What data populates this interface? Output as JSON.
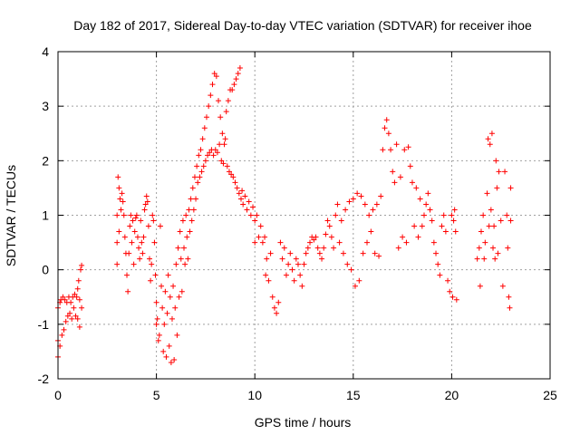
{
  "chart_data": {
    "type": "scatter",
    "title": "Day 182 of 2017, Sidereal Day-to-day VTEC variation (SDTVAR) for receiver ihoe",
    "xlabel": "GPS time / hours",
    "ylabel": "SDTVAR / TECUs",
    "xlim": [
      0,
      25
    ],
    "ylim": [
      -2,
      4
    ],
    "xticks": [
      0,
      5,
      10,
      15,
      20,
      25
    ],
    "yticks": [
      -2,
      -1,
      0,
      1,
      2,
      3,
      4
    ],
    "grid": true,
    "marker": "+",
    "color": "#ff0000",
    "series": [
      {
        "name": "SDTVAR",
        "points": [
          [
            0.0,
            -0.7
          ],
          [
            0.0,
            -1.3
          ],
          [
            0.0,
            -1.6
          ],
          [
            0.1,
            -0.6
          ],
          [
            0.1,
            -1.4
          ],
          [
            0.15,
            -0.55
          ],
          [
            0.2,
            -1.2
          ],
          [
            0.25,
            -0.5
          ],
          [
            0.3,
            -1.1
          ],
          [
            0.35,
            -0.55
          ],
          [
            0.4,
            -0.95
          ],
          [
            0.45,
            -0.6
          ],
          [
            0.5,
            -0.85
          ],
          [
            0.55,
            -0.5
          ],
          [
            0.6,
            -0.8
          ],
          [
            0.65,
            -0.6
          ],
          [
            0.7,
            -0.9
          ],
          [
            0.75,
            -0.5
          ],
          [
            0.8,
            -0.7
          ],
          [
            0.85,
            -0.45
          ],
          [
            0.9,
            -0.85
          ],
          [
            0.95,
            -0.5
          ],
          [
            1.0,
            -0.9
          ],
          [
            1.0,
            -0.35
          ],
          [
            1.05,
            -0.2
          ],
          [
            1.1,
            -0.55
          ],
          [
            1.1,
            -1.05
          ],
          [
            1.15,
            0.0
          ],
          [
            1.2,
            0.08
          ],
          [
            1.2,
            -0.7
          ],
          [
            3.0,
            0.1
          ],
          [
            3.0,
            0.5
          ],
          [
            3.0,
            1.0
          ],
          [
            3.05,
            1.7
          ],
          [
            3.1,
            0.7
          ],
          [
            3.1,
            1.5
          ],
          [
            3.15,
            1.3
          ],
          [
            3.2,
            1.1
          ],
          [
            3.25,
            1.4
          ],
          [
            3.3,
            1.25
          ],
          [
            3.35,
            1.0
          ],
          [
            3.4,
            0.6
          ],
          [
            3.45,
            0.3
          ],
          [
            3.5,
            -0.1
          ],
          [
            3.55,
            -0.4
          ],
          [
            3.6,
            0.3
          ],
          [
            3.65,
            0.8
          ],
          [
            3.7,
            1.0
          ],
          [
            3.75,
            0.5
          ],
          [
            3.8,
            0.9
          ],
          [
            3.85,
            0.1
          ],
          [
            3.9,
            0.7
          ],
          [
            3.95,
            0.95
          ],
          [
            4.0,
            1.0
          ],
          [
            4.05,
            0.6
          ],
          [
            4.1,
            0.4
          ],
          [
            4.15,
            0.2
          ],
          [
            4.2,
            0.9
          ],
          [
            4.25,
            0.5
          ],
          [
            4.3,
            0.3
          ],
          [
            4.35,
            0.6
          ],
          [
            4.4,
            1.1
          ],
          [
            4.45,
            1.2
          ],
          [
            4.5,
            1.35
          ],
          [
            4.55,
            1.25
          ],
          [
            4.6,
            0.8
          ],
          [
            4.65,
            0.2
          ],
          [
            4.7,
            -0.2
          ],
          [
            4.75,
            0.1
          ],
          [
            4.8,
            1.0
          ],
          [
            4.85,
            0.9
          ],
          [
            4.9,
            0.5
          ],
          [
            4.95,
            -0.1
          ],
          [
            5.0,
            -0.6
          ],
          [
            5.0,
            -1.0
          ],
          [
            5.05,
            -0.9
          ],
          [
            5.1,
            -1.3
          ],
          [
            5.15,
            -1.2
          ],
          [
            5.2,
            0.8
          ],
          [
            5.25,
            -0.3
          ],
          [
            5.3,
            -0.7
          ],
          [
            5.35,
            -1.5
          ],
          [
            5.4,
            -1.0
          ],
          [
            5.45,
            -0.4
          ],
          [
            5.5,
            -1.6
          ],
          [
            5.55,
            -0.8
          ],
          [
            5.6,
            -0.1
          ],
          [
            5.65,
            -1.4
          ],
          [
            5.7,
            -0.5
          ],
          [
            5.75,
            -1.7
          ],
          [
            5.8,
            -0.9
          ],
          [
            5.85,
            -0.3
          ],
          [
            5.9,
            -1.65
          ],
          [
            5.95,
            -0.7
          ],
          [
            6.0,
            0.1
          ],
          [
            6.05,
            -1.2
          ],
          [
            6.1,
            0.4
          ],
          [
            6.15,
            -0.5
          ],
          [
            6.2,
            0.7
          ],
          [
            6.25,
            0.2
          ],
          [
            6.3,
            -0.4
          ],
          [
            6.35,
            0.9
          ],
          [
            6.4,
            0.4
          ],
          [
            6.45,
            0.1
          ],
          [
            6.5,
            1.0
          ],
          [
            6.55,
            0.6
          ],
          [
            6.6,
            0.2
          ],
          [
            6.65,
            1.1
          ],
          [
            6.7,
            0.7
          ],
          [
            6.75,
            1.3
          ],
          [
            6.8,
            0.9
          ],
          [
            6.85,
            1.5
          ],
          [
            6.9,
            1.1
          ],
          [
            6.95,
            1.7
          ],
          [
            7.0,
            1.3
          ],
          [
            7.05,
            1.9
          ],
          [
            7.1,
            1.6
          ],
          [
            7.15,
            2.1
          ],
          [
            7.2,
            1.7
          ],
          [
            7.25,
            2.2
          ],
          [
            7.3,
            1.8
          ],
          [
            7.35,
            2.4
          ],
          [
            7.4,
            1.9
          ],
          [
            7.45,
            2.6
          ],
          [
            7.5,
            2.0
          ],
          [
            7.55,
            2.8
          ],
          [
            7.6,
            2.1
          ],
          [
            7.65,
            3.0
          ],
          [
            7.7,
            2.15
          ],
          [
            7.75,
            3.2
          ],
          [
            7.8,
            2.2
          ],
          [
            7.85,
            3.4
          ],
          [
            7.9,
            2.1
          ],
          [
            7.95,
            3.6
          ],
          [
            8.0,
            2.2
          ],
          [
            8.05,
            3.55
          ],
          [
            8.1,
            2.15
          ],
          [
            8.15,
            3.1
          ],
          [
            8.2,
            2.3
          ],
          [
            8.25,
            2.8
          ],
          [
            8.3,
            2.0
          ],
          [
            8.35,
            2.5
          ],
          [
            8.4,
            1.95
          ],
          [
            8.45,
            2.3
          ],
          [
            8.5,
            2.4
          ],
          [
            8.55,
            2.9
          ],
          [
            8.6,
            1.9
          ],
          [
            8.65,
            3.1
          ],
          [
            8.7,
            1.8
          ],
          [
            8.75,
            3.3
          ],
          [
            8.8,
            1.75
          ],
          [
            8.85,
            3.3
          ],
          [
            8.9,
            1.7
          ],
          [
            8.95,
            3.4
          ],
          [
            9.0,
            1.6
          ],
          [
            9.05,
            3.5
          ],
          [
            9.1,
            1.5
          ],
          [
            9.15,
            3.6
          ],
          [
            9.2,
            1.4
          ],
          [
            9.25,
            3.7
          ],
          [
            9.3,
            1.3
          ],
          [
            9.35,
            1.45
          ],
          [
            9.4,
            1.2
          ],
          [
            9.5,
            1.35
          ],
          [
            9.6,
            1.1
          ],
          [
            9.7,
            1.25
          ],
          [
            9.8,
            1.0
          ],
          [
            9.9,
            1.15
          ],
          [
            10.0,
            0.5
          ],
          [
            10.0,
            0.9
          ],
          [
            10.1,
            1.0
          ],
          [
            10.2,
            0.6
          ],
          [
            10.3,
            0.8
          ],
          [
            10.4,
            0.5
          ],
          [
            10.5,
            0.6
          ],
          [
            10.55,
            -0.1
          ],
          [
            10.6,
            0.2
          ],
          [
            10.7,
            -0.2
          ],
          [
            10.8,
            0.3
          ],
          [
            10.9,
            -0.5
          ],
          [
            11.0,
            -0.7
          ],
          [
            11.1,
            -0.8
          ],
          [
            11.2,
            -0.6
          ],
          [
            11.3,
            0.5
          ],
          [
            11.4,
            0.2
          ],
          [
            11.5,
            0.4
          ],
          [
            11.6,
            -0.1
          ],
          [
            11.7,
            0.1
          ],
          [
            11.8,
            0.3
          ],
          [
            11.9,
            0.0
          ],
          [
            12.0,
            -0.2
          ],
          [
            12.1,
            0.2
          ],
          [
            12.2,
            0.1
          ],
          [
            12.3,
            -0.1
          ],
          [
            12.4,
            -0.3
          ],
          [
            12.5,
            0.1
          ],
          [
            12.6,
            0.3
          ],
          [
            12.7,
            0.4
          ],
          [
            12.8,
            0.5
          ],
          [
            12.9,
            0.6
          ],
          [
            13.0,
            0.55
          ],
          [
            13.1,
            0.6
          ],
          [
            13.2,
            0.4
          ],
          [
            13.3,
            0.3
          ],
          [
            13.4,
            0.2
          ],
          [
            13.5,
            0.4
          ],
          [
            13.6,
            0.65
          ],
          [
            13.7,
            0.9
          ],
          [
            13.8,
            0.8
          ],
          [
            13.9,
            0.6
          ],
          [
            14.0,
            0.4
          ],
          [
            14.1,
            1.0
          ],
          [
            14.2,
            1.2
          ],
          [
            14.3,
            0.5
          ],
          [
            14.4,
            0.9
          ],
          [
            14.5,
            0.3
          ],
          [
            14.6,
            1.1
          ],
          [
            14.7,
            0.1
          ],
          [
            14.8,
            1.25
          ],
          [
            14.9,
            0.0
          ],
          [
            15.0,
            1.3
          ],
          [
            15.1,
            -0.3
          ],
          [
            15.2,
            1.4
          ],
          [
            15.3,
            -0.2
          ],
          [
            15.4,
            1.35
          ],
          [
            15.5,
            0.3
          ],
          [
            15.6,
            1.2
          ],
          [
            15.7,
            0.5
          ],
          [
            15.8,
            1.0
          ],
          [
            15.9,
            0.7
          ],
          [
            16.0,
            1.1
          ],
          [
            16.1,
            0.3
          ],
          [
            16.2,
            1.2
          ],
          [
            16.3,
            0.25
          ],
          [
            16.4,
            1.35
          ],
          [
            16.5,
            2.2
          ],
          [
            16.6,
            2.6
          ],
          [
            16.7,
            2.75
          ],
          [
            16.8,
            2.5
          ],
          [
            16.9,
            2.2
          ],
          [
            17.0,
            1.8
          ],
          [
            17.1,
            1.6
          ],
          [
            17.2,
            2.3
          ],
          [
            17.3,
            0.4
          ],
          [
            17.4,
            1.7
          ],
          [
            17.5,
            0.6
          ],
          [
            17.6,
            2.2
          ],
          [
            17.7,
            0.5
          ],
          [
            17.8,
            2.25
          ],
          [
            17.9,
            1.9
          ],
          [
            18.0,
            1.6
          ],
          [
            18.1,
            0.8
          ],
          [
            18.2,
            1.5
          ],
          [
            18.3,
            0.6
          ],
          [
            18.4,
            1.3
          ],
          [
            18.5,
            0.8
          ],
          [
            18.6,
            1.0
          ],
          [
            18.7,
            1.2
          ],
          [
            18.8,
            1.4
          ],
          [
            18.9,
            1.1
          ],
          [
            19.0,
            0.9
          ],
          [
            19.1,
            0.5
          ],
          [
            19.2,
            0.3
          ],
          [
            19.3,
            0.1
          ],
          [
            19.4,
            -0.1
          ],
          [
            19.5,
            0.8
          ],
          [
            19.6,
            1.0
          ],
          [
            19.7,
            0.7
          ],
          [
            19.8,
            -0.2
          ],
          [
            19.9,
            -0.4
          ],
          [
            20.0,
            1.0
          ],
          [
            20.05,
            -0.5
          ],
          [
            20.1,
            0.9
          ],
          [
            20.15,
            1.1
          ],
          [
            20.2,
            0.7
          ],
          [
            20.25,
            -0.55
          ],
          [
            21.3,
            0.2
          ],
          [
            21.4,
            0.4
          ],
          [
            21.45,
            -0.3
          ],
          [
            21.5,
            0.7
          ],
          [
            21.6,
            1.0
          ],
          [
            21.65,
            0.2
          ],
          [
            21.7,
            0.5
          ],
          [
            21.8,
            1.4
          ],
          [
            21.85,
            2.4
          ],
          [
            21.9,
            0.8
          ],
          [
            21.95,
            2.3
          ],
          [
            22.0,
            1.1
          ],
          [
            22.05,
            2.5
          ],
          [
            22.1,
            0.4
          ],
          [
            22.15,
            0.8
          ],
          [
            22.2,
            0.2
          ],
          [
            22.25,
            2.0
          ],
          [
            22.3,
            1.5
          ],
          [
            22.35,
            0.3
          ],
          [
            22.4,
            1.8
          ],
          [
            22.5,
            0.9
          ],
          [
            22.6,
            -0.3
          ],
          [
            22.7,
            1.8
          ],
          [
            22.8,
            1.0
          ],
          [
            22.85,
            0.4
          ],
          [
            22.9,
            -0.5
          ],
          [
            22.95,
            -0.7
          ],
          [
            23.0,
            1.5
          ],
          [
            23.0,
            0.9
          ]
        ]
      }
    ]
  }
}
